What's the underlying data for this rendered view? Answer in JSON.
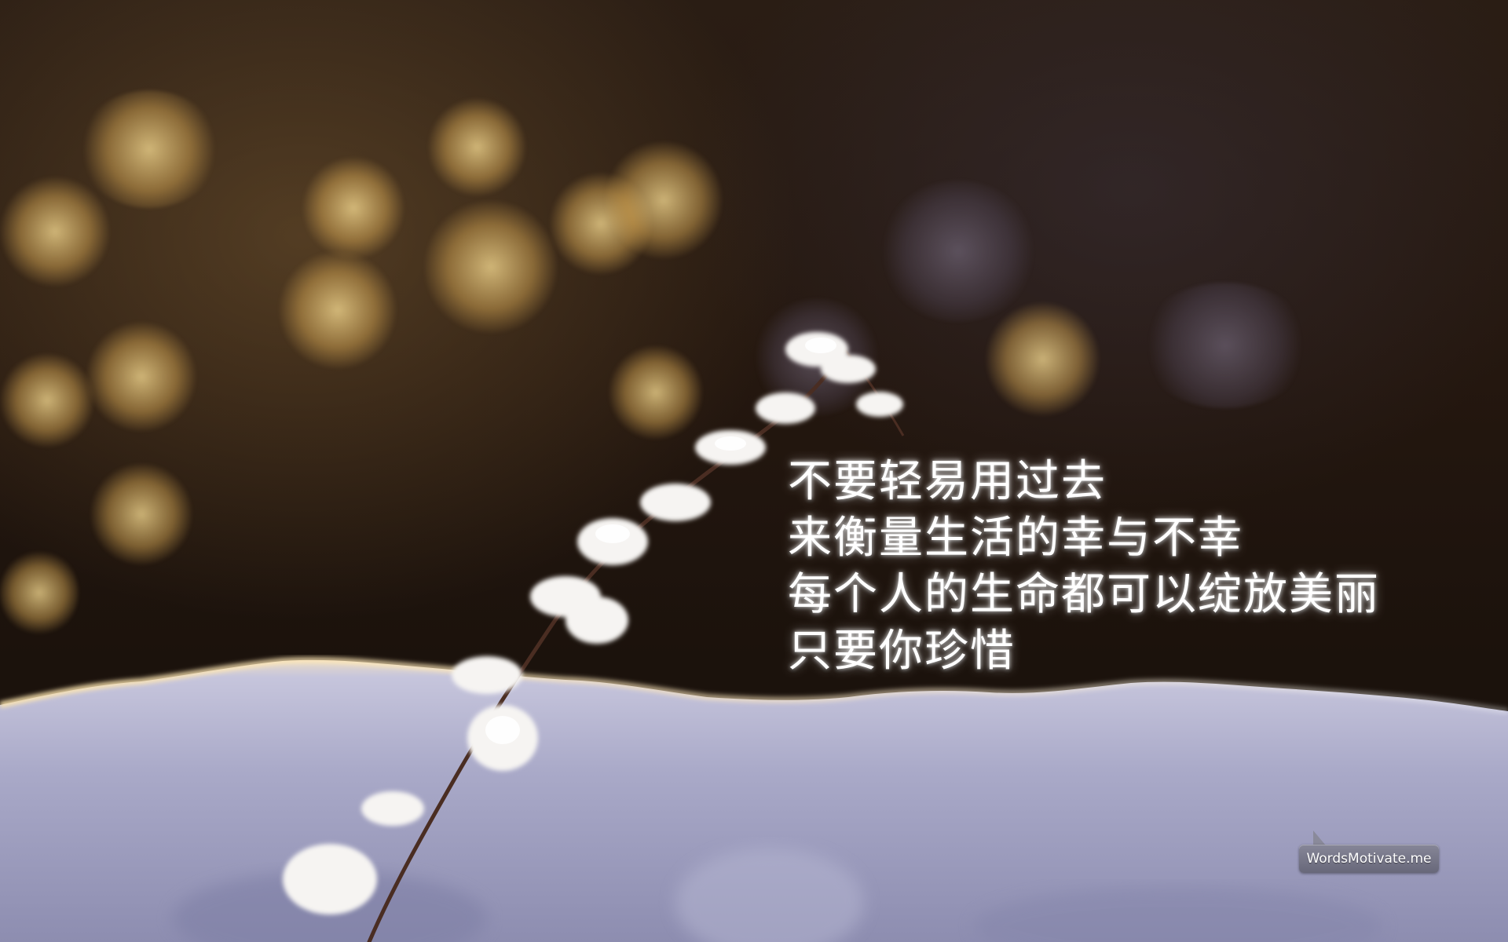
{
  "quote": {
    "lines": [
      "不要轻易用过去",
      "来衡量生活的幸与不幸",
      "每个人的生命都可以绽放美丽",
      "只要你珍惜"
    ]
  },
  "watermark": {
    "label": "WordsMotivate.me"
  },
  "colors": {
    "text": "#ffffff",
    "snow": "#b9bad6",
    "bokeh": "#e8c27a",
    "background": "#1a110c"
  }
}
